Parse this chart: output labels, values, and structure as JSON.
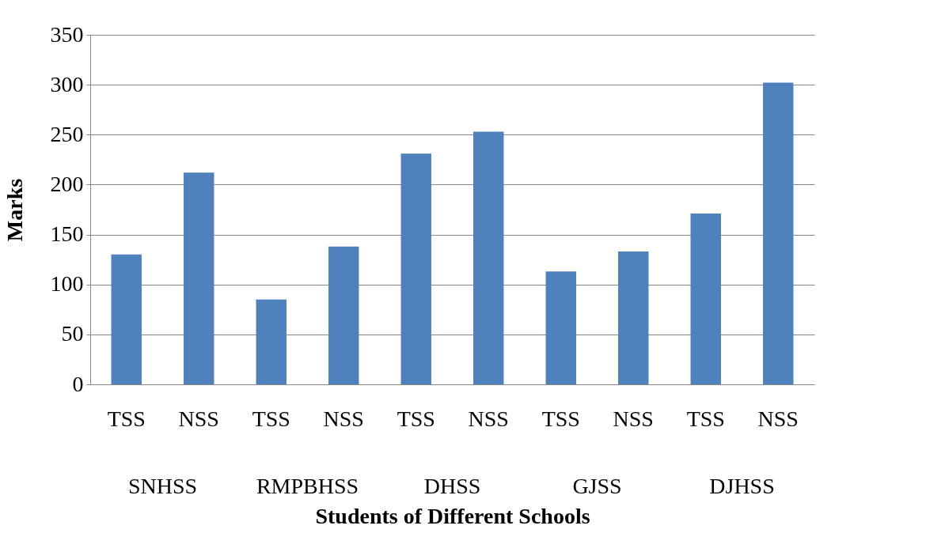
{
  "chart_data": {
    "type": "bar",
    "xlabel": "Students of Different Schools",
    "ylabel": "Marks",
    "categories": [
      "TSS",
      "NSS",
      "TSS",
      "NSS",
      "TSS",
      "NSS",
      "TSS",
      "NSS",
      "TSS",
      "NSS"
    ],
    "values": [
      130,
      212,
      85,
      138,
      231,
      253,
      113,
      133,
      171,
      302
    ],
    "color": "#4f81bd",
    "annotations": [
      "SNHSS",
      "RMPBHSS",
      "DHSS",
      "GJSS",
      "DJHSS"
    ],
    "ylim": [
      0,
      350
    ],
    "yticks": [
      0,
      50,
      100,
      150,
      200,
      250,
      300,
      350
    ],
    "grid": "y"
  }
}
